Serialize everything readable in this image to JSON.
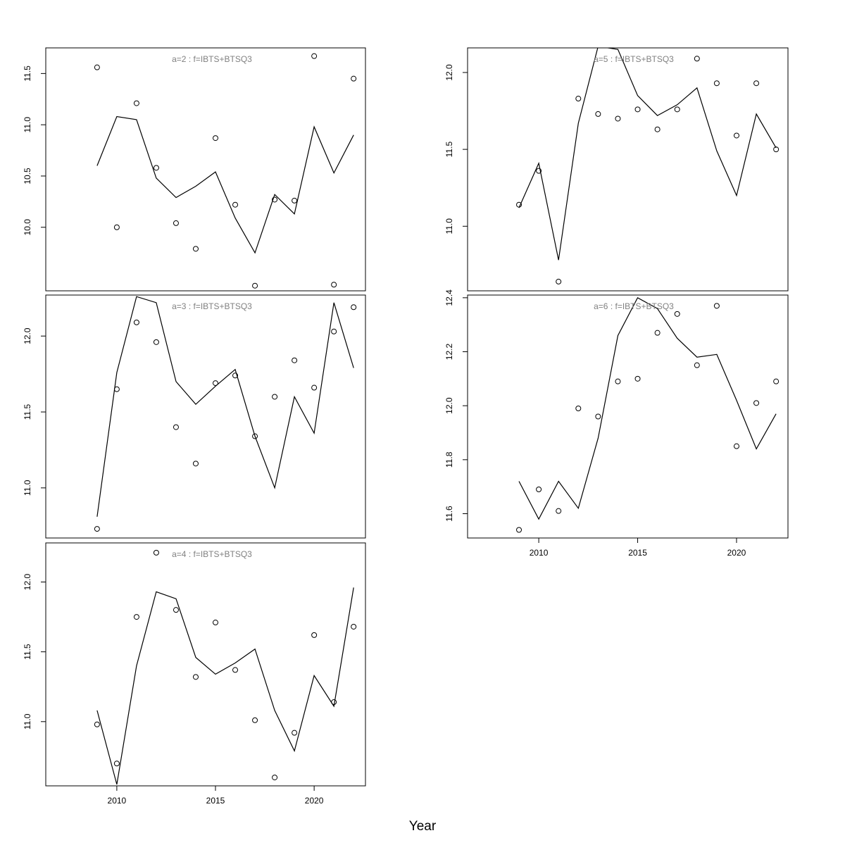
{
  "xlabel": "Year",
  "chart_data": [
    {
      "type": "line",
      "title": "a=2 : f=IBTS+BTSQ3",
      "x": [
        2009,
        2010,
        2011,
        2012,
        2013,
        2014,
        2015,
        2016,
        2017,
        2018,
        2019,
        2020,
        2021,
        2022
      ],
      "points": [
        11.56,
        10.0,
        11.21,
        10.58,
        10.04,
        9.79,
        10.87,
        10.22,
        9.43,
        10.27,
        10.26,
        11.67,
        9.44,
        11.45
      ],
      "line": [
        10.6,
        11.08,
        11.05,
        10.48,
        10.29,
        10.4,
        10.54,
        10.09,
        9.75,
        10.32,
        10.13,
        10.98,
        10.53,
        10.9
      ],
      "ylim": [
        9.38,
        11.75
      ],
      "yticks": [
        10.0,
        10.5,
        11.0,
        11.5
      ],
      "xlim": [
        2006.4,
        2022.6
      ],
      "xticks": [
        2010,
        2015,
        2020
      ],
      "show_x_ticks": false
    },
    {
      "type": "line",
      "title": "a=3 : f=IBTS+BTSQ3",
      "x": [
        2009,
        2010,
        2011,
        2012,
        2013,
        2014,
        2015,
        2016,
        2017,
        2018,
        2019,
        2020,
        2021,
        2022
      ],
      "points": [
        10.73,
        11.65,
        12.09,
        11.96,
        11.4,
        11.16,
        11.69,
        11.74,
        11.34,
        11.6,
        11.84,
        11.66,
        12.03,
        12.19
      ],
      "line": [
        10.81,
        11.76,
        12.26,
        12.22,
        11.7,
        11.55,
        11.67,
        11.78,
        11.34,
        11.0,
        11.6,
        11.36,
        12.22,
        11.79
      ],
      "ylim": [
        10.67,
        12.27
      ],
      "yticks": [
        11.0,
        11.5,
        12.0
      ],
      "xlim": [
        2006.4,
        2022.6
      ],
      "xticks": [
        2010,
        2015,
        2020
      ],
      "show_x_ticks": false
    },
    {
      "type": "line",
      "title": "a=4 : f=IBTS+BTSQ3",
      "x": [
        2009,
        2010,
        2011,
        2012,
        2013,
        2014,
        2015,
        2016,
        2017,
        2018,
        2019,
        2020,
        2021,
        2022
      ],
      "points": [
        10.98,
        10.7,
        11.75,
        12.21,
        11.8,
        11.32,
        11.71,
        11.37,
        11.01,
        10.6,
        10.92,
        11.62,
        11.14,
        11.68
      ],
      "line": [
        11.08,
        10.55,
        11.4,
        11.93,
        11.88,
        11.46,
        11.34,
        11.42,
        11.52,
        11.08,
        10.79,
        11.33,
        11.11,
        11.96
      ],
      "ylim": [
        10.54,
        12.28
      ],
      "yticks": [
        11.0,
        11.5,
        12.0
      ],
      "xlim": [
        2006.4,
        2022.6
      ],
      "xticks": [
        2010,
        2015,
        2020
      ],
      "show_x_ticks": true
    },
    {
      "type": "line",
      "title": "a=5 : f=IBTS+BTSQ3",
      "x": [
        2009,
        2010,
        2011,
        2012,
        2013,
        2014,
        2015,
        2016,
        2017,
        2018,
        2019,
        2020,
        2021,
        2022
      ],
      "points": [
        11.14,
        11.36,
        10.64,
        11.83,
        11.73,
        11.7,
        11.76,
        11.63,
        11.76,
        12.09,
        11.93,
        11.59,
        11.93,
        11.5
      ],
      "line": [
        11.12,
        11.41,
        10.78,
        11.67,
        12.17,
        12.15,
        11.85,
        11.72,
        11.79,
        11.9,
        11.49,
        11.2,
        11.73,
        11.51
      ],
      "ylim": [
        10.58,
        12.16
      ],
      "yticks": [
        11.0,
        11.5,
        12.0
      ],
      "xlim": [
        2006.4,
        2022.6
      ],
      "xticks": [
        2010,
        2015,
        2020
      ],
      "show_x_ticks": false
    },
    {
      "type": "line",
      "title": "a=6 : f=IBTS+BTSQ3",
      "x": [
        2009,
        2010,
        2011,
        2012,
        2013,
        2014,
        2015,
        2016,
        2017,
        2018,
        2019,
        2020,
        2021,
        2022
      ],
      "points": [
        11.54,
        11.69,
        11.61,
        11.99,
        11.96,
        12.09,
        12.1,
        12.27,
        12.34,
        12.15,
        12.37,
        11.85,
        12.01,
        12.09
      ],
      "line": [
        11.72,
        11.58,
        11.72,
        11.62,
        11.88,
        12.26,
        12.4,
        12.36,
        12.25,
        12.18,
        12.19,
        12.02,
        11.84,
        11.97
      ],
      "ylim": [
        11.51,
        12.41
      ],
      "yticks": [
        11.6,
        11.8,
        12.0,
        12.2,
        12.4
      ],
      "xlim": [
        2006.4,
        2022.6
      ],
      "xticks": [
        2010,
        2015,
        2020
      ],
      "show_x_ticks": true
    }
  ]
}
